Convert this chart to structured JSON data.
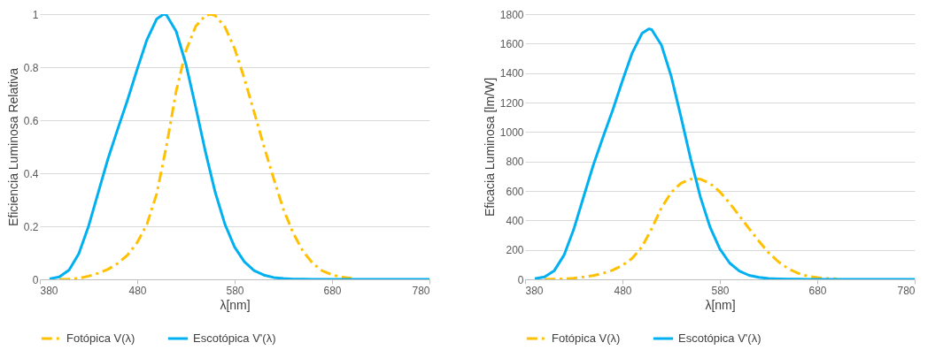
{
  "chart_data": [
    {
      "type": "line",
      "xlabel": "λ[nm]",
      "ylabel": "Eficiencia Luminosa Relativa",
      "xlim": [
        380,
        780
      ],
      "xticks": [
        380,
        480,
        580,
        680,
        780
      ],
      "ylim": [
        0,
        1
      ],
      "yticks": [
        0,
        0.2,
        0.4,
        0.6,
        0.8,
        1
      ],
      "grid": "y",
      "legend": "bottom",
      "series": [
        {
          "name": "Fotópica V(λ)",
          "color": "#ffc000",
          "line_style": "dashed",
          "x": [
            400,
            410,
            420,
            430,
            440,
            450,
            460,
            470,
            480,
            490,
            500,
            510,
            520,
            530,
            540,
            550,
            555,
            560,
            570,
            580,
            590,
            600,
            610,
            620,
            630,
            640,
            650,
            660,
            670,
            680,
            690,
            700
          ],
          "values": [
            0.0,
            0.001,
            0.004,
            0.012,
            0.023,
            0.038,
            0.06,
            0.091,
            0.139,
            0.208,
            0.323,
            0.503,
            0.71,
            0.862,
            0.954,
            0.995,
            1.0,
            0.995,
            0.952,
            0.87,
            0.757,
            0.631,
            0.503,
            0.381,
            0.265,
            0.175,
            0.107,
            0.061,
            0.032,
            0.017,
            0.008,
            0.004
          ]
        },
        {
          "name": "Escotópica V'(λ)",
          "color": "#00b0f0",
          "line_style": "solid",
          "x": [
            390,
            400,
            410,
            420,
            430,
            440,
            450,
            460,
            470,
            480,
            490,
            500,
            507,
            510,
            520,
            530,
            540,
            550,
            560,
            570,
            580,
            590,
            600,
            610,
            620,
            630,
            640,
            650,
            660,
            670,
            680,
            700,
            720,
            740,
            760,
            780
          ],
          "values": [
            0.002,
            0.009,
            0.035,
            0.097,
            0.2,
            0.328,
            0.455,
            0.567,
            0.676,
            0.793,
            0.904,
            0.982,
            1.0,
            0.997,
            0.935,
            0.811,
            0.65,
            0.481,
            0.329,
            0.208,
            0.121,
            0.066,
            0.033,
            0.016,
            0.007,
            0.003,
            0.001,
            0.001,
            0.0,
            0.0,
            0.0,
            0.0,
            0.0,
            0.0,
            0.0,
            0.0
          ]
        }
      ]
    },
    {
      "type": "line",
      "xlabel": "λ[nm]",
      "ylabel": "Eficacia Luminosa [lm/W]",
      "xlim": [
        380,
        780
      ],
      "xticks": [
        380,
        480,
        580,
        680,
        780
      ],
      "ylim": [
        0,
        1800
      ],
      "yticks": [
        0,
        200,
        400,
        600,
        800,
        1000,
        1200,
        1400,
        1600,
        1800
      ],
      "grid": "y",
      "legend": "bottom",
      "series": [
        {
          "name": "Fotópica V(λ)",
          "color": "#ffc000",
          "line_style": "dashed",
          "x": [
            400,
            410,
            420,
            430,
            440,
            450,
            460,
            470,
            480,
            490,
            500,
            510,
            520,
            530,
            540,
            550,
            555,
            560,
            570,
            580,
            590,
            600,
            610,
            620,
            630,
            640,
            650,
            660,
            670,
            680,
            690,
            700
          ],
          "values": [
            0,
            1,
            3,
            8,
            16,
            26,
            41,
            62,
            95,
            142,
            221,
            344,
            485,
            589,
            652,
            680,
            683,
            680,
            650,
            594,
            517,
            431,
            344,
            260,
            181,
            120,
            73,
            42,
            22,
            12,
            6,
            3
          ]
        },
        {
          "name": "Escotópica V'(λ)",
          "color": "#00b0f0",
          "line_style": "solid",
          "x": [
            390,
            400,
            410,
            420,
            430,
            440,
            450,
            460,
            470,
            480,
            490,
            500,
            507,
            510,
            520,
            530,
            540,
            550,
            560,
            570,
            580,
            590,
            600,
            610,
            620,
            630,
            640,
            650,
            660,
            670,
            680,
            700,
            720,
            740,
            760,
            780
          ],
          "values": [
            4,
            16,
            59,
            164,
            340,
            558,
            774,
            964,
            1149,
            1348,
            1537,
            1669,
            1700,
            1695,
            1590,
            1379,
            1105,
            818,
            559,
            353,
            206,
            111,
            56,
            27,
            13,
            6,
            3,
            1,
            1,
            0,
            0,
            0,
            0,
            0,
            0,
            0
          ]
        }
      ]
    }
  ]
}
